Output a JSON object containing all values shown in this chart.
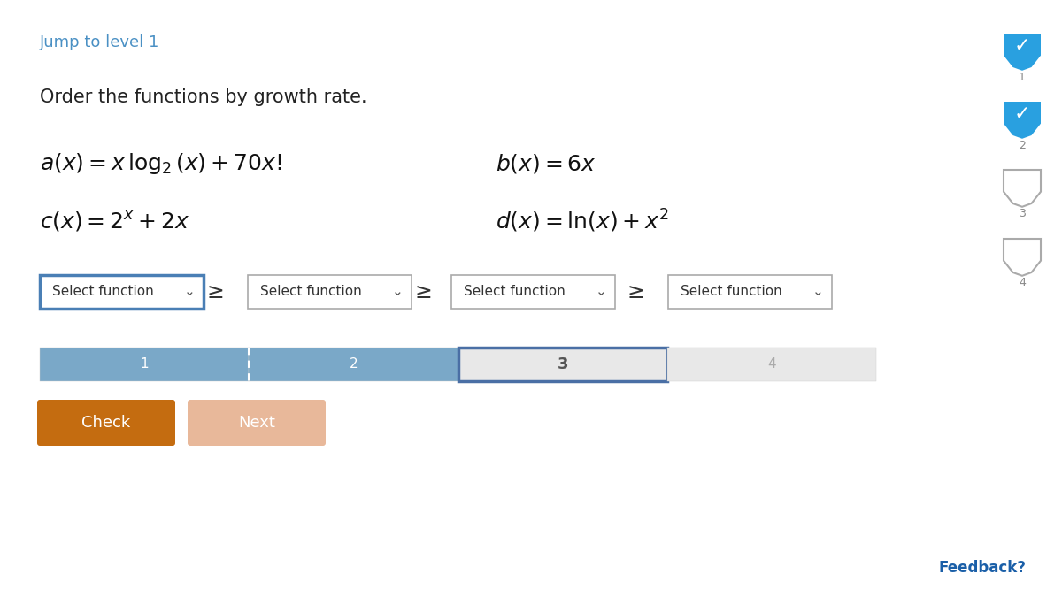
{
  "bg_color": "#ffffff",
  "jump_text": "Jump to level 1",
  "jump_color": "#4a90c4",
  "instruction": "Order the functions by growth rate.",
  "dropdown_label": "Select function",
  "dropdown_border_active": "#4a7fb5",
  "dropdown_border_inactive": "#aaaaaa",
  "gte_symbol": "≥",
  "progress_bar_filled_color": "#7aa8c8",
  "progress_bar_active_border": "#4a6fa5",
  "progress_bar_inactive_color": "#e8e8e8",
  "progress_labels": [
    "1",
    "2",
    "3",
    "4"
  ],
  "check_button_color": "#c46c10",
  "check_button_text_color": "#ffffff",
  "check_label": "Check",
  "next_button_color": "#e8b89a",
  "next_button_text_color": "#ffffff",
  "next_label": "Next",
  "feedback_text": "Feedback?",
  "feedback_color": "#1a5fa8",
  "badge_filled_color": "#29a0e0",
  "badge_empty_stroke": "#aaaaaa",
  "badge_check_color": "#ffffff"
}
